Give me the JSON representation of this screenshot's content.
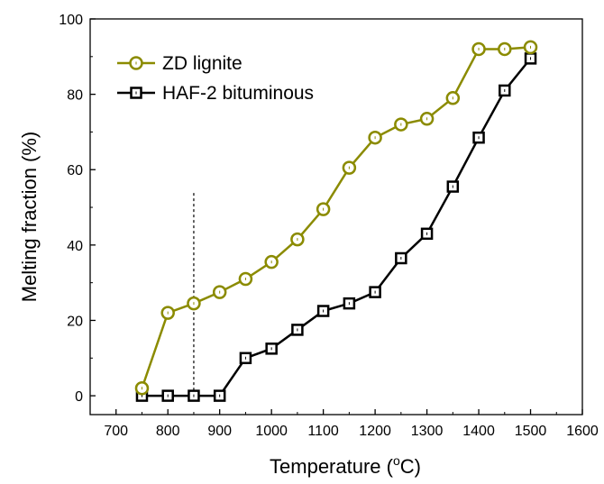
{
  "chart_data": {
    "type": "line",
    "title": "",
    "xlabel": "Temperature (",
    "xlabel_sup": "o",
    "xlabel_suffix": "C)",
    "ylabel": "Melting fraction (%)",
    "xlim": [
      650,
      1600
    ],
    "ylim": [
      -5,
      100
    ],
    "xticks": [
      700,
      800,
      900,
      1000,
      1100,
      1200,
      1300,
      1400,
      1500,
      1600
    ],
    "yticks": [
      0,
      20,
      40,
      60,
      80,
      100
    ],
    "grid": false,
    "legend_position": "top-left",
    "reference_line": {
      "x": 850,
      "y_from": 0,
      "y_to": 54,
      "style": "dashed"
    },
    "series": [
      {
        "name": "ZD lignite",
        "marker": "circle",
        "color": "#8b8b00",
        "x": [
          750,
          800,
          850,
          900,
          950,
          1000,
          1050,
          1100,
          1150,
          1200,
          1250,
          1300,
          1350,
          1400,
          1450,
          1500
        ],
        "y": [
          2,
          22,
          24.5,
          27.5,
          31,
          35.5,
          41.5,
          49.5,
          60.5,
          68.5,
          72,
          73.5,
          79,
          92,
          92,
          92.5
        ]
      },
      {
        "name": "HAF-2 bituminous",
        "marker": "square",
        "color": "#000000",
        "x": [
          750,
          800,
          850,
          900,
          950,
          1000,
          1050,
          1100,
          1150,
          1200,
          1250,
          1300,
          1350,
          1400,
          1450,
          1500
        ],
        "y": [
          0,
          0,
          0,
          0,
          10,
          12.5,
          17.5,
          22.5,
          24.5,
          27.5,
          36.5,
          43,
          55.5,
          68.5,
          81,
          89.5
        ]
      }
    ]
  }
}
